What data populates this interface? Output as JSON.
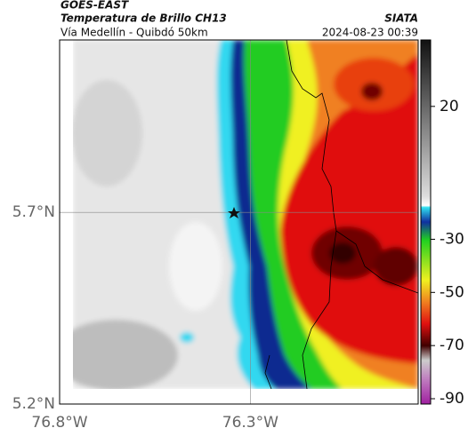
{
  "header": {
    "source": "GOES-EAST",
    "title": "Temperatura de Brillo CH13",
    "brand": "SIATA",
    "subtitle": "Vía Medellín - Quibdó 50km",
    "timestamp": "2024-08-23 00:39"
  },
  "map": {
    "xlim": [
      -76.8,
      -75.86
    ],
    "ylim": [
      5.2,
      6.15
    ],
    "xticks": [
      {
        "value": -76.8,
        "label": "76.8°W"
      },
      {
        "value": -76.3,
        "label": "76.3°W"
      }
    ],
    "yticks": [
      {
        "value": 5.2,
        "label": "5.2°N"
      },
      {
        "value": 5.7,
        "label": "5.7°N"
      }
    ],
    "grid": true
  },
  "colorbar": {
    "lim": [
      -92,
      45
    ],
    "ticks": [
      20,
      -30,
      -50,
      -70,
      -90
    ]
  }
}
